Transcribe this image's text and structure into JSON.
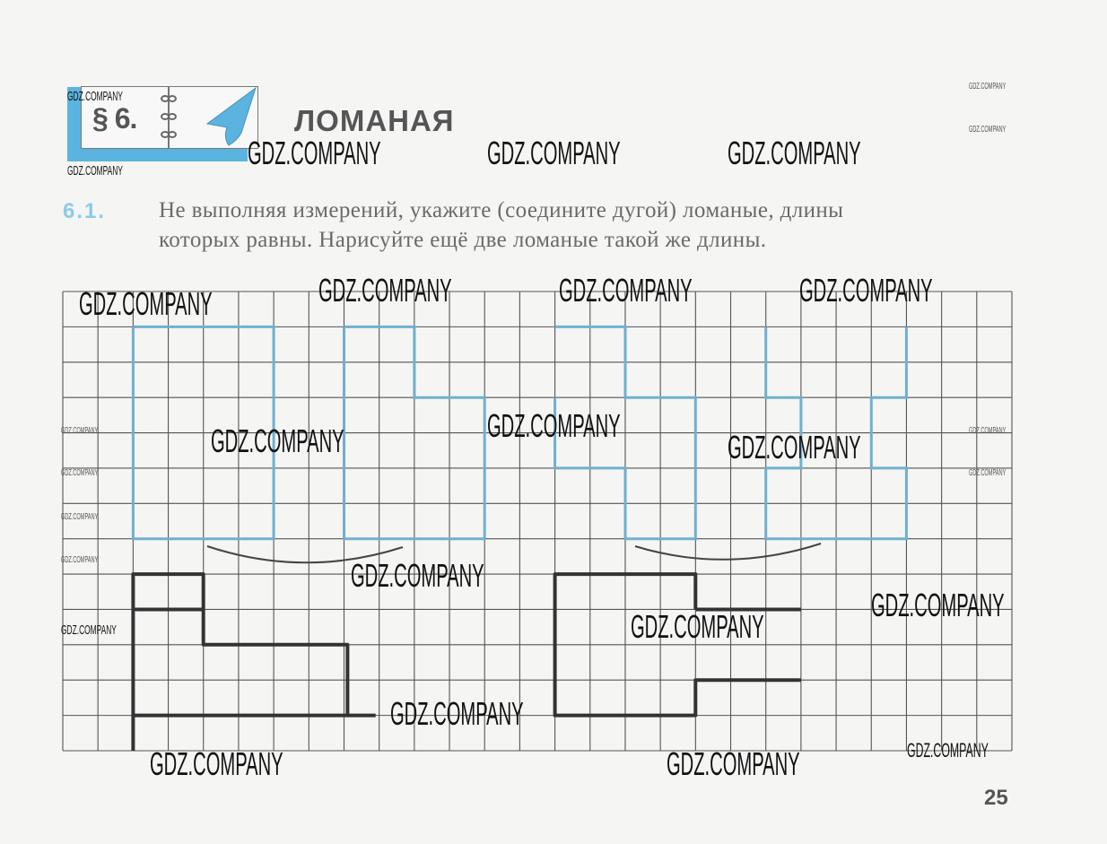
{
  "header": {
    "section_number": "§ 6.",
    "section_title": "ЛОМАНАЯ",
    "accent_color": "#5bb4e0"
  },
  "exercise": {
    "number": "6.1.",
    "line1": "Не выполняя измерений, укажите (соедините дугой) ломаные, длины",
    "line2": "которых равны. Нарисуйте ещё две ломаные такой же длины."
  },
  "figure": {
    "grid_color": "#555555",
    "printed_shape_color": "#6fb0d0",
    "drawn_shape_color": "#333333"
  },
  "watermark": "GDZ.COMPANY",
  "page_number": "25"
}
